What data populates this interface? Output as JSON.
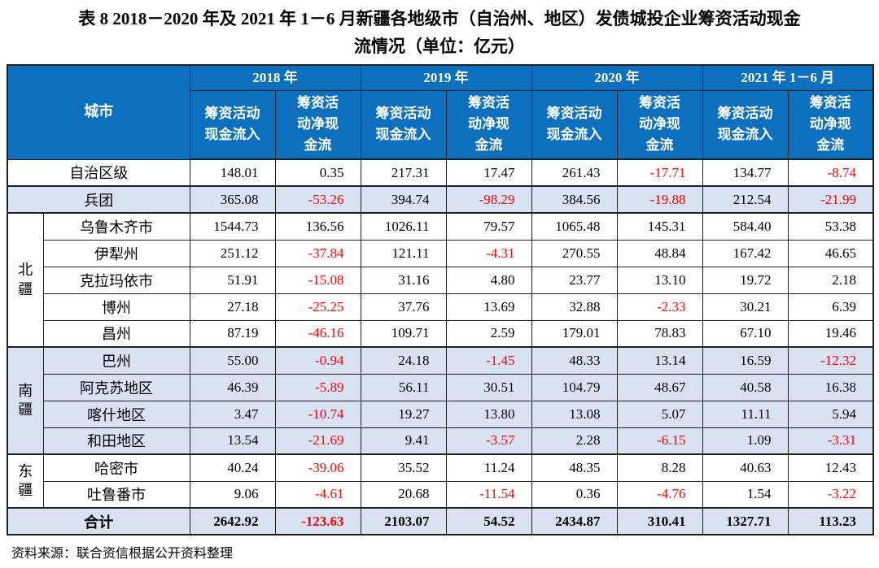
{
  "title": {
    "line1": "表 8  2018－2020 年及 2021 年 1－6 月新疆各地级市（自治州、地区）发债城投企业筹资活动现金",
    "line2": "流情况（单位：亿元）"
  },
  "source_note": "资料来源：联合资信根据公开资料整理",
  "colors": {
    "header_bg": "#0c70be",
    "header_text": "#ffffff",
    "shaded_row_bg": "#d9e2f3",
    "negative_value": "#ff0000",
    "border": "#1f1f1f"
  },
  "table": {
    "city_header": "城市",
    "years": [
      "2018 年",
      "2019 年",
      "2020 年",
      "2021 年 1－6 月"
    ],
    "sub_inflow": "筹资活动\n现金流入",
    "sub_net": "筹资活\n动净现\n金流",
    "rows": [
      {
        "city": "自治区级",
        "full_width": true,
        "shaded": false,
        "values": [
          "148.01",
          "0.35",
          "217.31",
          "17.47",
          "261.43",
          "-17.71",
          "134.77",
          "-8.74"
        ]
      },
      {
        "city": "兵团",
        "full_width": true,
        "shaded": true,
        "section_start": true,
        "values": [
          "365.08",
          "-53.26",
          "394.74",
          "-98.29",
          "384.56",
          "-19.88",
          "212.54",
          "-21.99"
        ]
      },
      {
        "region": "北疆",
        "region_rowspan": 5,
        "city": "乌鲁木齐市",
        "shaded": false,
        "section_start": true,
        "values": [
          "1544.73",
          "136.56",
          "1026.11",
          "79.57",
          "1065.48",
          "145.31",
          "584.40",
          "53.38"
        ]
      },
      {
        "city": "伊犁州",
        "shaded": false,
        "values": [
          "251.12",
          "-37.84",
          "121.11",
          "-4.31",
          "270.55",
          "48.84",
          "167.42",
          "46.65"
        ]
      },
      {
        "city": "克拉玛依市",
        "shaded": false,
        "values": [
          "51.91",
          "-15.08",
          "31.16",
          "4.80",
          "23.77",
          "13.10",
          "19.72",
          "2.18"
        ]
      },
      {
        "city": "博州",
        "shaded": false,
        "values": [
          "27.18",
          "-25.25",
          "37.76",
          "13.69",
          "32.88",
          "-2.33",
          "30.21",
          "6.39"
        ]
      },
      {
        "city": "昌州",
        "shaded": false,
        "values": [
          "87.19",
          "-46.16",
          "109.71",
          "2.59",
          "179.01",
          "78.83",
          "67.10",
          "19.46"
        ]
      },
      {
        "region": "南疆",
        "region_rowspan": 4,
        "city": "巴州",
        "shaded": true,
        "section_start": true,
        "values": [
          "55.00",
          "-0.94",
          "24.18",
          "-1.45",
          "48.33",
          "13.14",
          "16.59",
          "-12.32"
        ]
      },
      {
        "city": "阿克苏地区",
        "shaded": true,
        "values": [
          "46.39",
          "-5.89",
          "56.11",
          "30.51",
          "104.79",
          "48.67",
          "40.58",
          "16.38"
        ]
      },
      {
        "city": "喀什地区",
        "shaded": true,
        "values": [
          "3.47",
          "-10.74",
          "19.27",
          "13.80",
          "13.08",
          "5.07",
          "11.11",
          "5.94"
        ]
      },
      {
        "city": "和田地区",
        "shaded": true,
        "values": [
          "13.54",
          "-21.69",
          "9.41",
          "-3.57",
          "2.28",
          "-6.15",
          "1.09",
          "-3.31"
        ]
      },
      {
        "region": "东疆",
        "region_rowspan": 2,
        "city": "哈密市",
        "shaded": false,
        "section_start": true,
        "values": [
          "40.24",
          "-39.06",
          "35.52",
          "11.24",
          "48.35",
          "8.28",
          "40.63",
          "12.43"
        ]
      },
      {
        "city": "吐鲁番市",
        "shaded": false,
        "values": [
          "9.06",
          "-4.61",
          "20.68",
          "-11.54",
          "0.36",
          "-4.76",
          "1.54",
          "-3.22"
        ]
      },
      {
        "city": "合计",
        "full_width": true,
        "shaded": true,
        "bold": true,
        "section_start": true,
        "values": [
          "2642.92",
          "-123.63",
          "2103.07",
          "54.52",
          "2434.87",
          "310.41",
          "1327.71",
          "113.23"
        ]
      }
    ]
  }
}
